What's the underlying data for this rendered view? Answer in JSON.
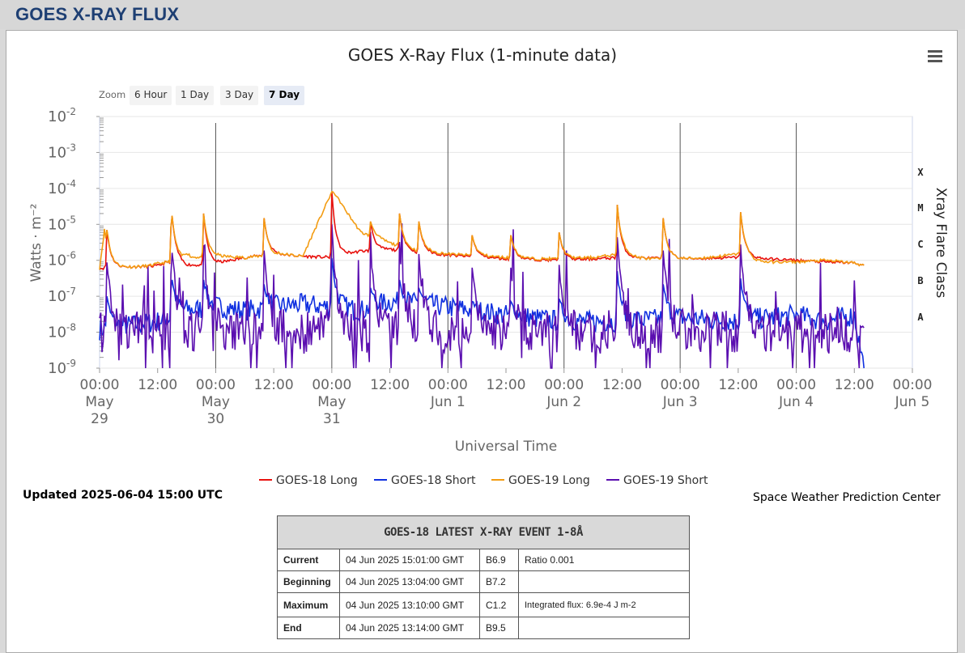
{
  "page": {
    "title": "GOES X-RAY FLUX"
  },
  "zoom": {
    "label": "Zoom",
    "buttons": [
      "6 Hour",
      "1 Day",
      "3 Day",
      "7 Day"
    ],
    "active": "7 Day"
  },
  "menu_icon": "hamburger-menu-icon",
  "chart_data": {
    "type": "line",
    "title": "GOES X-Ray Flux (1-minute data)",
    "xlabel": "Universal Time",
    "ylabel": "Watts · m⁻²",
    "y_scale": "log",
    "ylim": [
      1e-09,
      0.01
    ],
    "y_ticks": [
      "10^-2",
      "10^-3",
      "10^-4",
      "10^-5",
      "10^-6",
      "10^-7",
      "10^-8",
      "10^-9"
    ],
    "right_axis_title": "Xray Flare Class",
    "flare_classes": [
      "X",
      "M",
      "C",
      "B",
      "A"
    ],
    "x_range": [
      "2025-05-29 00:00",
      "2025-06-05 00:00"
    ],
    "x_ticks": [
      {
        "time": "00:00",
        "date": "May 29"
      },
      {
        "time": "12:00",
        "date": ""
      },
      {
        "time": "00:00",
        "date": "May 30"
      },
      {
        "time": "12:00",
        "date": ""
      },
      {
        "time": "00:00",
        "date": "May 31"
      },
      {
        "time": "12:00",
        "date": ""
      },
      {
        "time": "00:00",
        "date": "Jun 1"
      },
      {
        "time": "12:00",
        "date": ""
      },
      {
        "time": "00:00",
        "date": "Jun 2"
      },
      {
        "time": "12:00",
        "date": ""
      },
      {
        "time": "00:00",
        "date": "Jun 3"
      },
      {
        "time": "12:00",
        "date": ""
      },
      {
        "time": "00:00",
        "date": "Jun 4"
      },
      {
        "time": "12:00",
        "date": ""
      },
      {
        "time": "00:00",
        "date": "Jun 5"
      }
    ],
    "grid": true,
    "legend_position": "bottom",
    "series": [
      {
        "name": "GOES-18 Long",
        "color": "#e8120e",
        "x_hours": [
          0,
          6,
          12,
          14,
          18,
          24,
          30,
          36,
          42,
          48,
          54,
          60,
          66,
          72,
          84,
          96,
          108,
          120,
          132,
          144,
          150,
          156,
          158
        ],
        "values": [
          6e-07,
          6.5e-07,
          7e-07,
          9e-07,
          7e-07,
          8e-07,
          1.2e-06,
          1.5e-06,
          1.3e-06,
          1.2e-06,
          1.8e-06,
          2e-06,
          1.6e-06,
          1.4e-06,
          1.1e-06,
          1e-06,
          1.2e-06,
          1.1e-06,
          1.2e-06,
          1e-06,
          9e-07,
          8.5e-07,
          7e-07
        ]
      },
      {
        "name": "GOES-18 Short",
        "color": "#1030e0",
        "x_hours": [
          0,
          6,
          12,
          18,
          24,
          30,
          36,
          42,
          48,
          54,
          60,
          66,
          72,
          84,
          96,
          108,
          120,
          132,
          144,
          150,
          156,
          158
        ],
        "values": [
          1.2e-08,
          1.5e-08,
          2e-08,
          4e-08,
          5e-08,
          4e-08,
          5e-08,
          6e-08,
          5e-08,
          4e-08,
          7e-08,
          6e-08,
          5e-08,
          3e-08,
          2e-08,
          2e-08,
          2.5e-08,
          2e-08,
          3e-08,
          2e-08,
          3e-08,
          1e-09
        ]
      },
      {
        "name": "GOES-19 Long",
        "color": "#f39c12",
        "x_hours": [
          0,
          1,
          2,
          3,
          6,
          10,
          12,
          14,
          17,
          18,
          19,
          24,
          30,
          35,
          36,
          37,
          42,
          48,
          54,
          60,
          62,
          63,
          66,
          72,
          80,
          84,
          90,
          96,
          102,
          108,
          110,
          111,
          114,
          120,
          126,
          132,
          134,
          135,
          138,
          144,
          150,
          156,
          158
        ],
        "peaks": [
          [
            1.5,
            7e-06
          ],
          [
            14.8,
            3.5e-05
          ],
          [
            21.5,
            2e-05
          ],
          [
            34,
            1.5e-05
          ],
          [
            48,
            8e-05
          ],
          [
            56,
            1.2e-05
          ],
          [
            62,
            2e-05
          ],
          [
            66,
            1.2e-05
          ],
          [
            77,
            5e-06
          ],
          [
            85,
            5e-06
          ],
          [
            95,
            6e-06
          ],
          [
            107,
            3.5e-05
          ],
          [
            116.5,
            1.5e-05
          ],
          [
            132.5,
            2.2e-05
          ]
        ],
        "values": [
          6e-07,
          7e-06,
          7e-07,
          6.5e-07,
          6.5e-07,
          7e-07,
          8e-07,
          9e-07,
          1e-06,
          1.5e-06,
          1.2e-06,
          1.3e-06,
          1.2e-06,
          1.4e-06,
          1.2e-06,
          1.5e-06,
          1.3e-06,
          8e-05,
          6e-06,
          3e-06,
          2.5e-06,
          2e-06,
          1.8e-06,
          1.5e-06,
          1.3e-06,
          1.2e-06,
          1.1e-06,
          1.1e-06,
          1.2e-06,
          1.5e-06,
          1.3e-06,
          1.2e-06,
          1.1e-06,
          1.1e-06,
          1.2e-06,
          1.5e-06,
          1.2e-06,
          1e-06,
          9e-07,
          9e-07,
          1e-06,
          8.5e-07,
          7e-07
        ]
      },
      {
        "name": "GOES-19 Short",
        "color": "#5b0fb0",
        "x_hours": [
          0,
          158
        ],
        "values": [
          1e-08,
          1e-08
        ]
      }
    ]
  },
  "legend": {
    "items": [
      {
        "label": "GOES-18 Long",
        "color": "#e8120e"
      },
      {
        "label": "GOES-18 Short",
        "color": "#1030e0"
      },
      {
        "label": "GOES-19 Long",
        "color": "#f39c12"
      },
      {
        "label": "GOES-19 Short",
        "color": "#5b0fb0"
      }
    ]
  },
  "updated": "Updated 2025-06-04 15:00 UTC",
  "credit": "Space Weather Prediction Center",
  "event_table": {
    "title": "GOES-18 LATEST X-RAY EVENT 1-8Å",
    "rows": [
      {
        "label": "Current",
        "time": "04 Jun 2025 15:01:00 GMT",
        "class": "B6.9",
        "extra": "Ratio 0.001"
      },
      {
        "label": "Beginning",
        "time": "04 Jun 2025 13:04:00 GMT",
        "class": "B7.2",
        "extra": ""
      },
      {
        "label": "Maximum",
        "time": "04 Jun 2025 13:10:00 GMT",
        "class": "C1.2",
        "extra": "Integrated flux: 6.9e-4 J m-2"
      },
      {
        "label": "End",
        "time": "04 Jun 2025 13:14:00 GMT",
        "class": "B9.5",
        "extra": ""
      }
    ]
  }
}
